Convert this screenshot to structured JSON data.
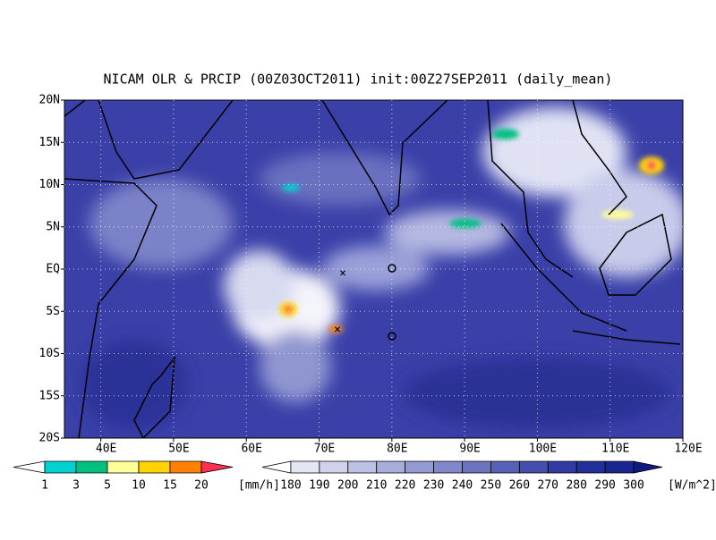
{
  "title": "NICAM OLR & PRCIP (00Z03OCT2011) init:00Z27SEP2011 (daily_mean)",
  "lat_labels": [
    "20N",
    "15N",
    "10N",
    "5N",
    "EQ",
    "5S",
    "10S",
    "15S",
    "20S"
  ],
  "lon_labels": [
    "40E",
    "50E",
    "60E",
    "70E",
    "80E",
    "90E",
    "100E",
    "110E",
    "120E"
  ],
  "precip_scale": {
    "labels": [
      1,
      3,
      5,
      10,
      15,
      20
    ],
    "unit": "[mm/h]",
    "colors": [
      "#ffffff",
      "#00d2d2",
      "#00c080",
      "#ffff99",
      "#ffd200",
      "#ff8000",
      "#ff3050"
    ]
  },
  "olr_scale": {
    "labels": [
      180,
      190,
      200,
      210,
      220,
      230,
      240,
      250,
      260,
      270,
      280,
      290,
      300
    ],
    "unit": "[W/m^2]",
    "colors": [
      "#ffffff",
      "#e4e6f4",
      "#d0d3ec",
      "#bcc0e4",
      "#a8addc",
      "#949ad4",
      "#8087cc",
      "#6c74c2",
      "#5861b8",
      "#444eae",
      "#303ba4",
      "#24309a",
      "#1a2690",
      "#0f1a80"
    ]
  }
}
